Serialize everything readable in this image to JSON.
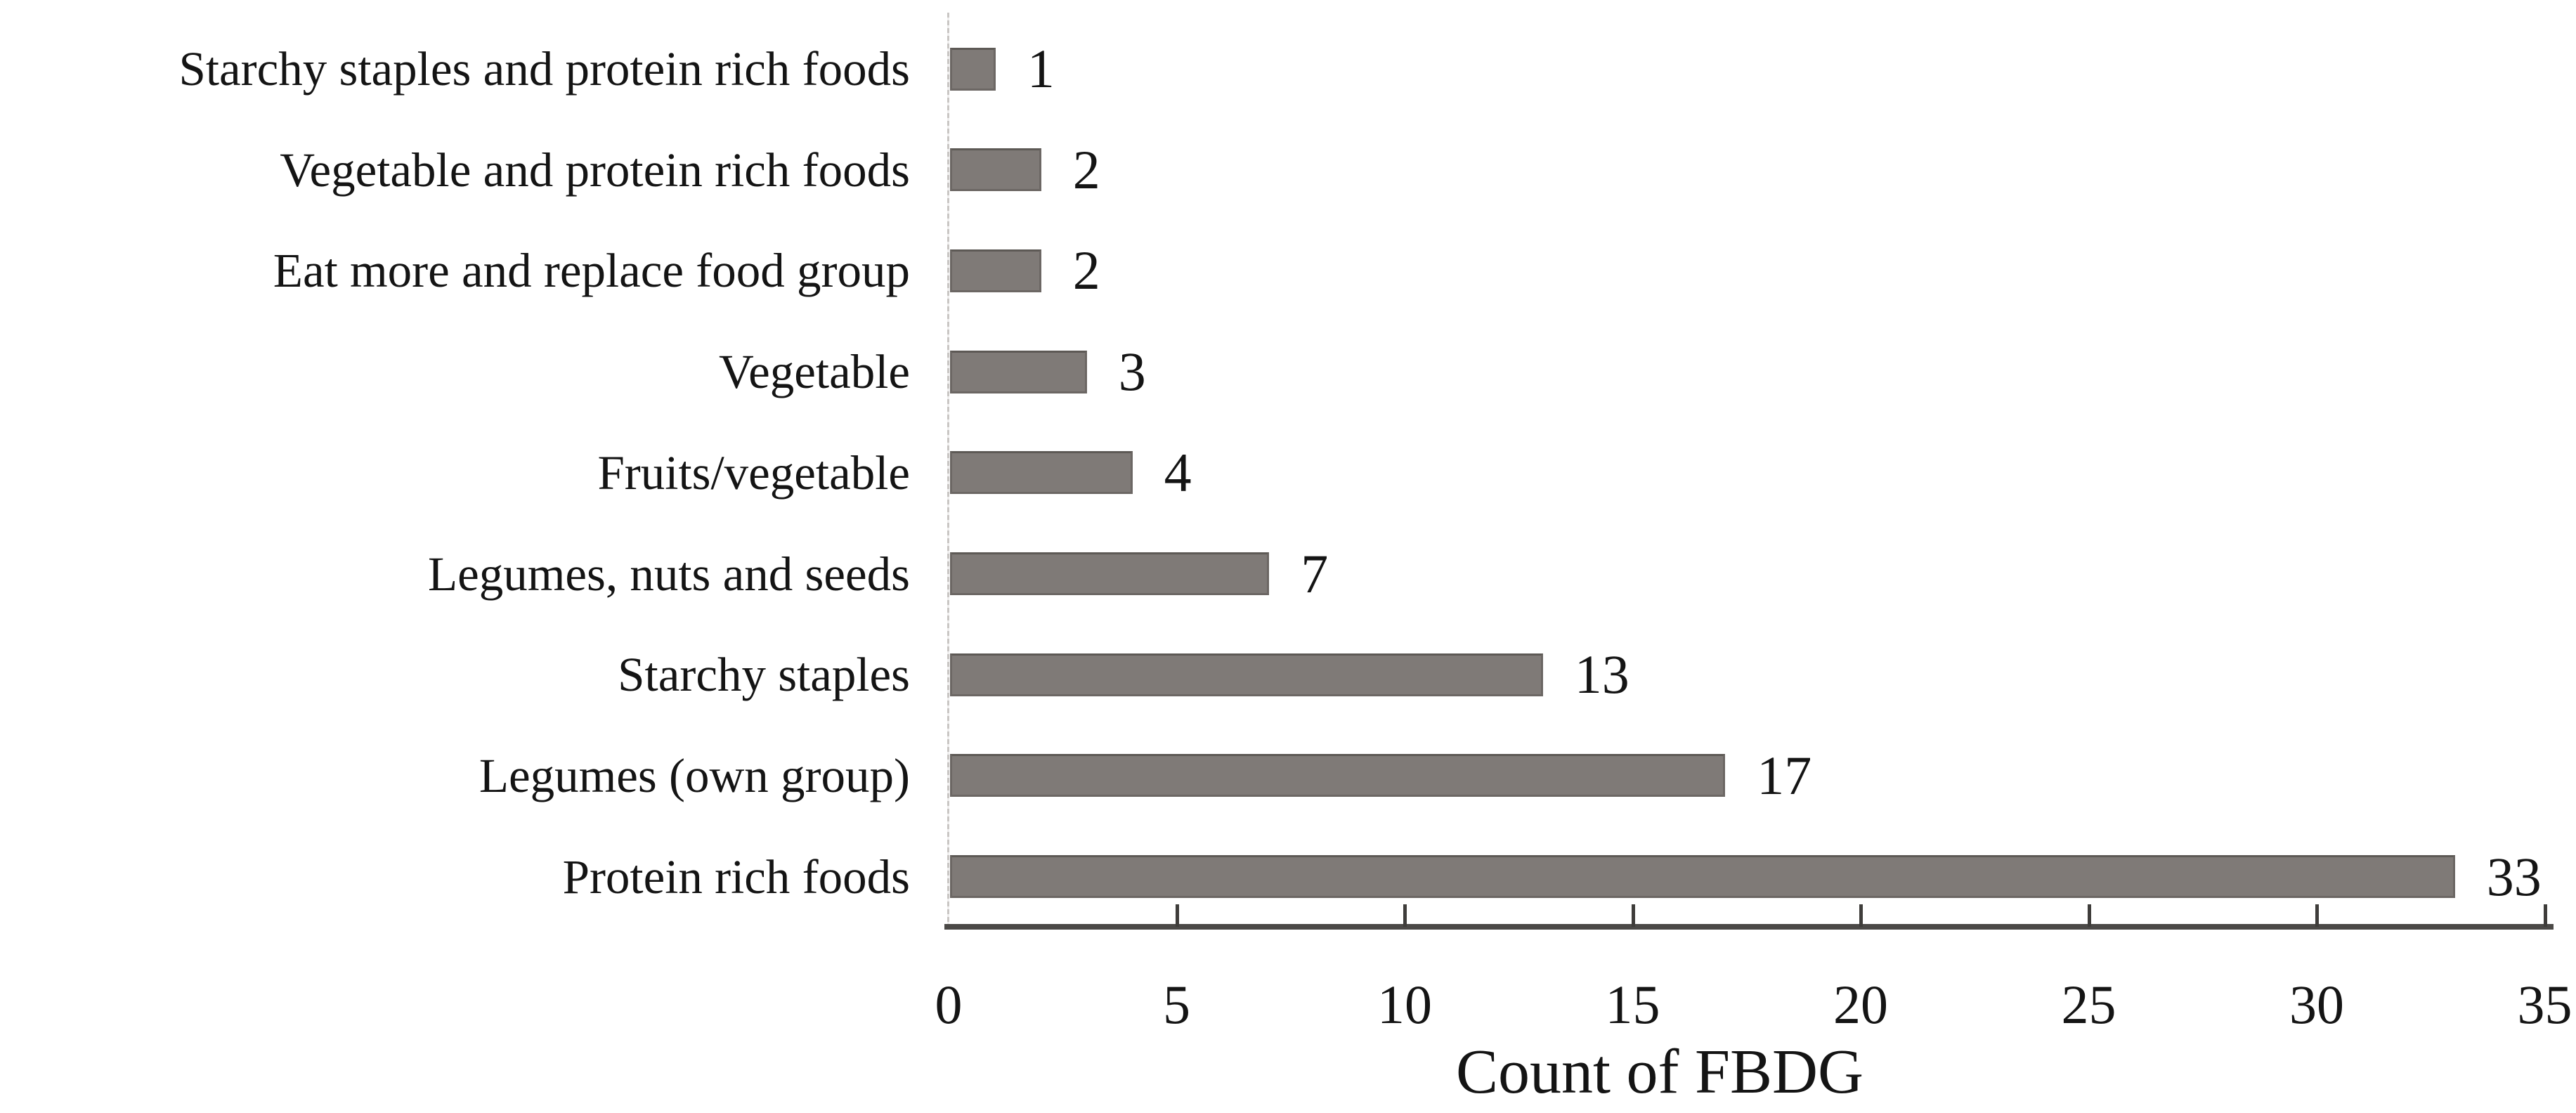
{
  "chart_data": {
    "type": "bar",
    "orientation": "horizontal",
    "title": "",
    "xlabel": "Count of FBDG",
    "ylabel": "",
    "xlim": [
      0,
      35
    ],
    "xticks": [
      0,
      5,
      10,
      15,
      20,
      25,
      30,
      35
    ],
    "grid": false,
    "legend": false,
    "value_labels": true,
    "categories": [
      "Starchy staples and protein rich foods",
      "Vegetable and protein rich foods",
      "Eat more and replace food group",
      "Vegetable",
      "Fruits/vegetable",
      "Legumes, nuts and seeds",
      "Starchy staples",
      "Legumes (own group)",
      "Protein rich foods"
    ],
    "values": [
      1,
      2,
      2,
      3,
      4,
      7,
      13,
      17,
      33
    ],
    "colors": {
      "bar_fill": "#7f7a77",
      "bar_border": "#6c6764",
      "bar_border_top": "#5d5955",
      "x_axis_line": "#4b4947",
      "y_axis_line": "#c9c6c4",
      "tick": "#3f3d3b",
      "text": "#141414"
    }
  }
}
